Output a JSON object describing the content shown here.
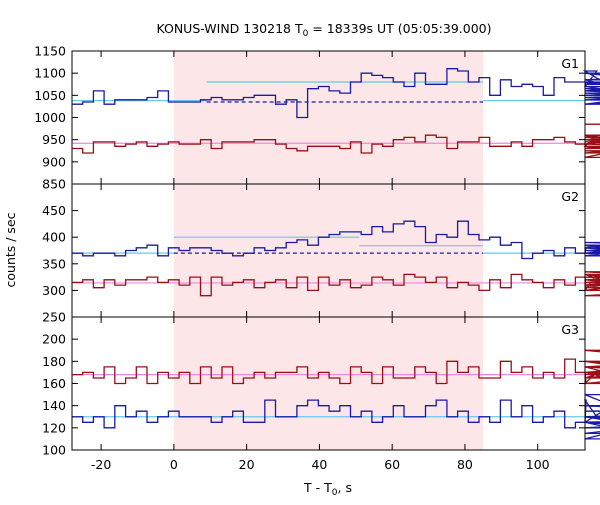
{
  "chart_data": {
    "type": "line",
    "title": "KONUS-WIND 130218 T",
    "title_sub": "0",
    "title_rest": " = 18339s UT (05:05:39.000)",
    "xlabel_main": "T - T",
    "xlabel_sub": "0",
    "xlabel_rest": ", s",
    "ylabel": "counts / sec",
    "xlim": [
      -28,
      113
    ],
    "x_ticks": [
      -20,
      0,
      20,
      40,
      60,
      80,
      100
    ],
    "highlight_interval": [
      0,
      85
    ],
    "colors": {
      "blue": "#1a1aa6",
      "red": "#9a0f17",
      "light_blue": "#66c8ee",
      "pink_line": "#e88ae0",
      "shade": "#fde6e8"
    },
    "panels": [
      {
        "label": "G1",
        "ylim": [
          850,
          1150
        ],
        "y_ticks": [
          850,
          900,
          950,
          1000,
          1050,
          1100,
          1150
        ],
        "step_x0": -28,
        "step_dt": 2.944,
        "series": [
          {
            "name": "",
            "color": "blue",
            "values": [
              1030,
              1035,
              1060,
              1030,
              1040,
              1040,
              1040,
              1045,
              1060,
              1035,
              1035,
              1035,
              1040,
              1045,
              1040,
              1040,
              1045,
              1050,
              1050,
              1030,
              1040,
              1000,
              1065,
              1070,
              1060,
              1055,
              1080,
              1100,
              1095,
              1090,
              1080,
              1070,
              1100,
              1075,
              1075,
              1110,
              1105,
              1080,
              1090,
              1050,
              1085,
              1070,
              1075,
              1070,
              1050,
              1090,
              1080,
              1080,
              1070,
              1105,
              1075,
              1085,
              1060,
              1070,
              1050,
              1060,
              1080,
              1045,
              1030,
              1060,
              1075,
              1085,
              1100,
              1060,
              1040,
              1030,
              1055,
              1030,
              1045,
              1060,
              1030,
              1100,
              1065,
              1045,
              1040,
              1050,
              1040
            ]
          },
          {
            "name": "",
            "color": "red",
            "values": [
              930,
              920,
              945,
              945,
              935,
              940,
              945,
              935,
              940,
              945,
              940,
              940,
              950,
              930,
              945,
              945,
              945,
              950,
              950,
              940,
              930,
              925,
              935,
              935,
              935,
              930,
              945,
              920,
              940,
              935,
              950,
              955,
              945,
              960,
              955,
              930,
              945,
              945,
              955,
              935,
              935,
              945,
              935,
              950,
              950,
              955,
              945,
              940,
              935,
              960,
              935,
              930,
              940,
              960,
              935,
              910,
              950,
              960,
              950,
              925,
              920,
              950,
              955,
              940,
              950,
              930,
              935,
              920,
              945,
              945,
              955,
              940,
              925,
              925,
              930,
              930,
              985
            ]
          }
        ],
        "fit_lines": [
          {
            "color": "light_blue",
            "style": "solid",
            "segments": [
              [
                -28,
                9,
                1038
              ],
              [
                9,
                85,
                1080
              ],
              [
                85,
                113,
                1038
              ]
            ]
          },
          {
            "color": "blue",
            "style": "dashed",
            "segments": [
              [
                9,
                85,
                1035
              ]
            ]
          },
          {
            "color": "pink_line",
            "style": "solid",
            "segments": [
              [
                -28,
                113,
                942
              ]
            ]
          }
        ]
      },
      {
        "label": "G2",
        "ylim": [
          250,
          500
        ],
        "y_ticks": [
          250,
          300,
          350,
          400,
          450
        ],
        "step_x0": -28,
        "step_dt": 2.944,
        "series": [
          {
            "name": "",
            "color": "blue",
            "values": [
              370,
              365,
              370,
              370,
              365,
              375,
              380,
              385,
              365,
              380,
              375,
              380,
              380,
              375,
              370,
              365,
              370,
              380,
              375,
              380,
              390,
              395,
              385,
              400,
              405,
              410,
              410,
              405,
              420,
              410,
              425,
              430,
              420,
              390,
              405,
              400,
              430,
              405,
              395,
              400,
              385,
              390,
              360,
              370,
              375,
              365,
              380,
              370,
              380,
              385,
              380,
              375,
              370,
              365,
              380,
              365,
              385,
              370,
              380,
              370,
              390,
              385,
              380,
              380,
              375,
              375,
              380,
              375,
              370,
              365,
              375,
              380,
              365,
              370,
              375,
              370,
              365
            ]
          },
          {
            "name": "",
            "color": "red",
            "values": [
              315,
              320,
              305,
              320,
              310,
              320,
              320,
              325,
              315,
              320,
              310,
              325,
              290,
              325,
              310,
              315,
              320,
              305,
              315,
              320,
              305,
              325,
              300,
              325,
              310,
              320,
              305,
              310,
              325,
              320,
              310,
              330,
              325,
              315,
              325,
              305,
              315,
              310,
              300,
              320,
              305,
              330,
              320,
              315,
              305,
              320,
              310,
              325,
              300,
              330,
              315,
              310,
              320,
              310,
              305,
              325,
              315,
              310,
              330,
              300,
              335,
              320,
              315,
              325,
              310,
              315,
              320,
              300,
              315,
              320,
              330,
              290,
              320,
              320,
              325,
              315,
              325
            ]
          }
        ],
        "fit_lines": [
          {
            "color": "light_blue",
            "style": "solid",
            "segments": [
              [
                -28,
                0,
                370
              ],
              [
                0,
                51,
                400
              ],
              [
                51,
                85,
                384
              ],
              [
                85,
                113,
                370
              ]
            ]
          },
          {
            "color": "blue",
            "style": "dashed",
            "segments": [
              [
                0,
                85,
                370
              ]
            ]
          },
          {
            "color": "pink_line",
            "style": "solid",
            "segments": [
              [
                -28,
                113,
                314
              ]
            ]
          }
        ]
      },
      {
        "label": "G3",
        "ylim": [
          100,
          220
        ],
        "y_ticks": [
          100,
          120,
          140,
          160,
          180,
          200
        ],
        "step_x0": -28,
        "step_dt": 2.944,
        "series": [
          {
            "name": "",
            "color": "red",
            "values": [
              168,
              170,
              165,
              175,
              160,
              165,
              175,
              160,
              170,
              165,
              170,
              160,
              175,
              165,
              175,
              160,
              165,
              170,
              165,
              170,
              170,
              175,
              165,
              170,
              165,
              160,
              175,
              170,
              160,
              175,
              165,
              165,
              175,
              170,
              160,
              180,
              170,
              175,
              165,
              165,
              180,
              170,
              175,
              165,
              170,
              165,
              182,
              170,
              160,
              170,
              165,
              175,
              165,
              170,
              165,
              170,
              175,
              180,
              165,
              170,
              170,
              168,
              170,
              160,
              175,
              165,
              165,
              180,
              165,
              170,
              175,
              170,
              160,
              170,
              190,
              165,
              170
            ]
          },
          {
            "name": "",
            "color": "blue",
            "values": [
              130,
              125,
              130,
              120,
              140,
              130,
              135,
              125,
              130,
              135,
              130,
              130,
              130,
              125,
              130,
              135,
              125,
              125,
              145,
              130,
              130,
              140,
              145,
              140,
              135,
              140,
              130,
              135,
              125,
              130,
              140,
              130,
              130,
              140,
              145,
              130,
              135,
              125,
              130,
              125,
              145,
              130,
              140,
              125,
              130,
              135,
              120,
              125,
              145,
              130,
              130,
              125,
              150,
              130,
              125,
              110,
              130,
              130,
              125,
              125,
              115,
              130,
              125,
              130,
              130,
              125,
              120,
              130,
              140,
              130,
              125,
              130,
              120,
              130,
              135,
              140,
              130
            ]
          }
        ],
        "fit_lines": [
          {
            "color": "pink_line",
            "style": "solid",
            "segments": [
              [
                -28,
                113,
                168
              ]
            ]
          },
          {
            "color": "light_blue",
            "style": "solid",
            "segments": [
              [
                -28,
                113,
                130
              ]
            ]
          }
        ]
      }
    ]
  }
}
